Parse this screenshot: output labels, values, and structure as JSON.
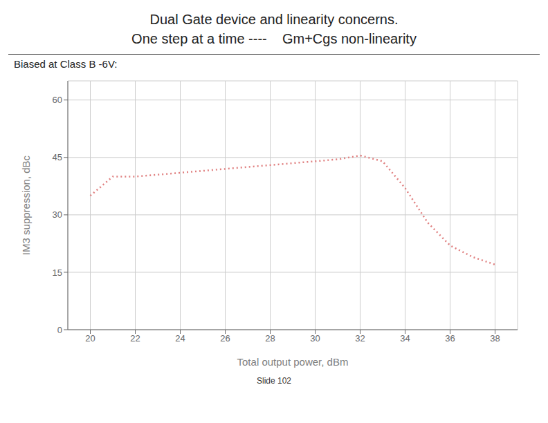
{
  "chart_data": {
    "type": "line",
    "title": "Dual Gate device and linearity concerns.\nOne step at a time ----    Gm+Cgs non-linearity",
    "subtitle": "Biased at Class B -6V:",
    "x_label": "Total output power, dBm",
    "y_label": "IM3 suppression, dBc",
    "annotations": [
      "Slide 102"
    ],
    "x": [
      20,
      21,
      22,
      23,
      24,
      25,
      26,
      27,
      28,
      29,
      30,
      31,
      32,
      33,
      34,
      35,
      36,
      37,
      38
    ],
    "values": [
      35,
      40,
      40,
      40.5,
      41,
      41.5,
      42,
      42.5,
      43,
      43.5,
      44,
      44.5,
      45.5,
      44,
      37,
      28,
      22,
      19,
      17
    ],
    "color": "#e08080",
    "line_style": "dotted",
    "xlim": [
      19,
      39
    ],
    "ylim": [
      0,
      65
    ],
    "xticks": [
      20,
      22,
      24,
      26,
      28,
      30,
      32,
      34,
      36,
      38
    ],
    "yticks": [
      0,
      15,
      30,
      45,
      60
    ],
    "grid": true
  }
}
